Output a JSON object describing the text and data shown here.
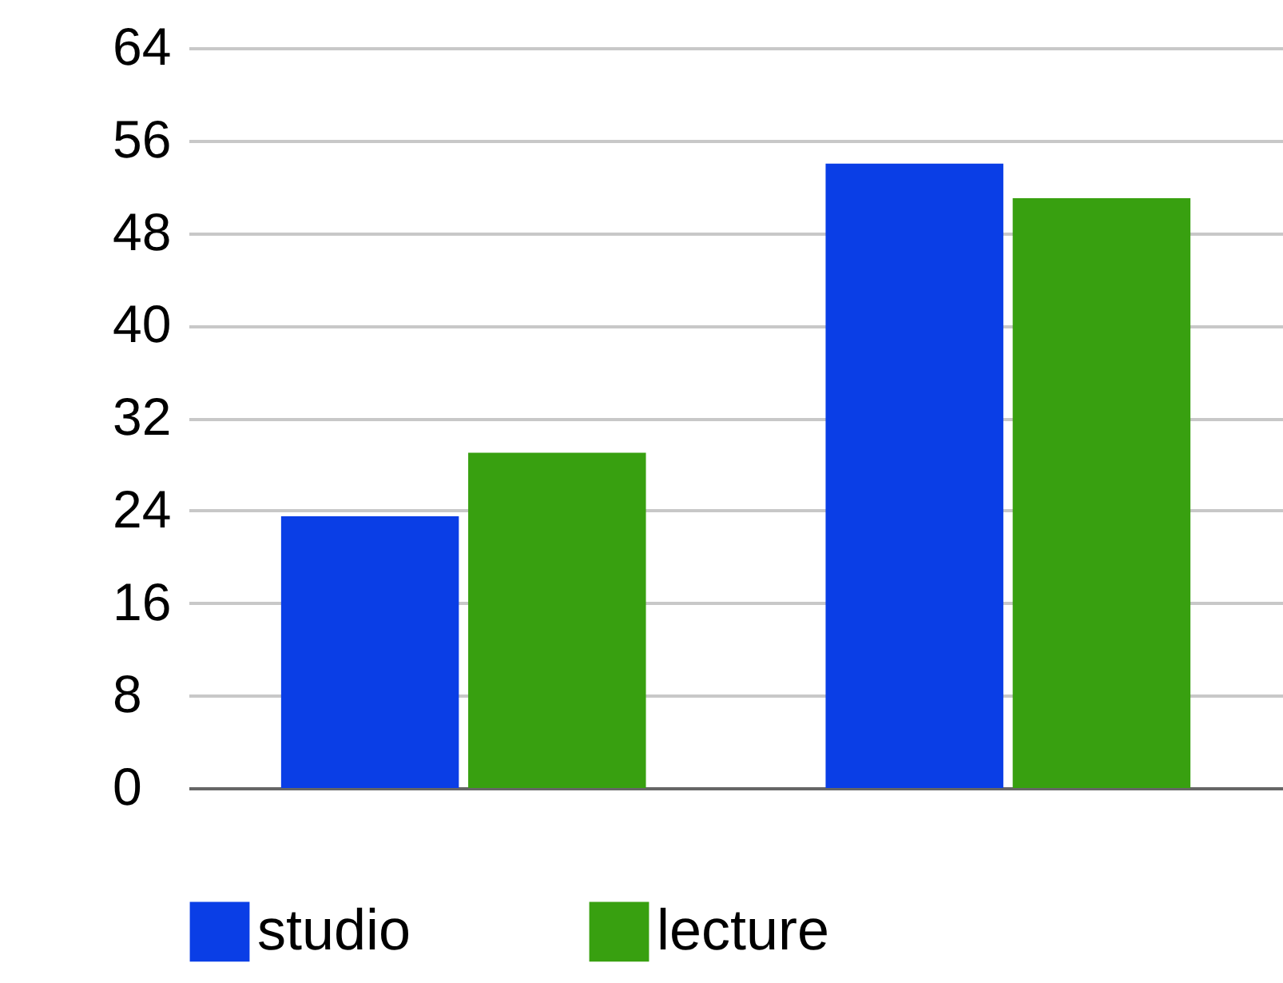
{
  "chart_data": {
    "type": "bar",
    "categories": [
      null,
      null
    ],
    "series": [
      {
        "name": "studio",
        "color": "#0a3ee6",
        "values": [
          23.5,
          54
        ]
      },
      {
        "name": "lecture",
        "color": "#38a010",
        "values": [
          29,
          51
        ]
      }
    ],
    "ylim": [
      0,
      64
    ],
    "yticks": [
      0,
      8,
      16,
      24,
      32,
      40,
      48,
      56,
      64
    ],
    "grid": "y",
    "legend": "bottom",
    "tick_labels": "y"
  }
}
